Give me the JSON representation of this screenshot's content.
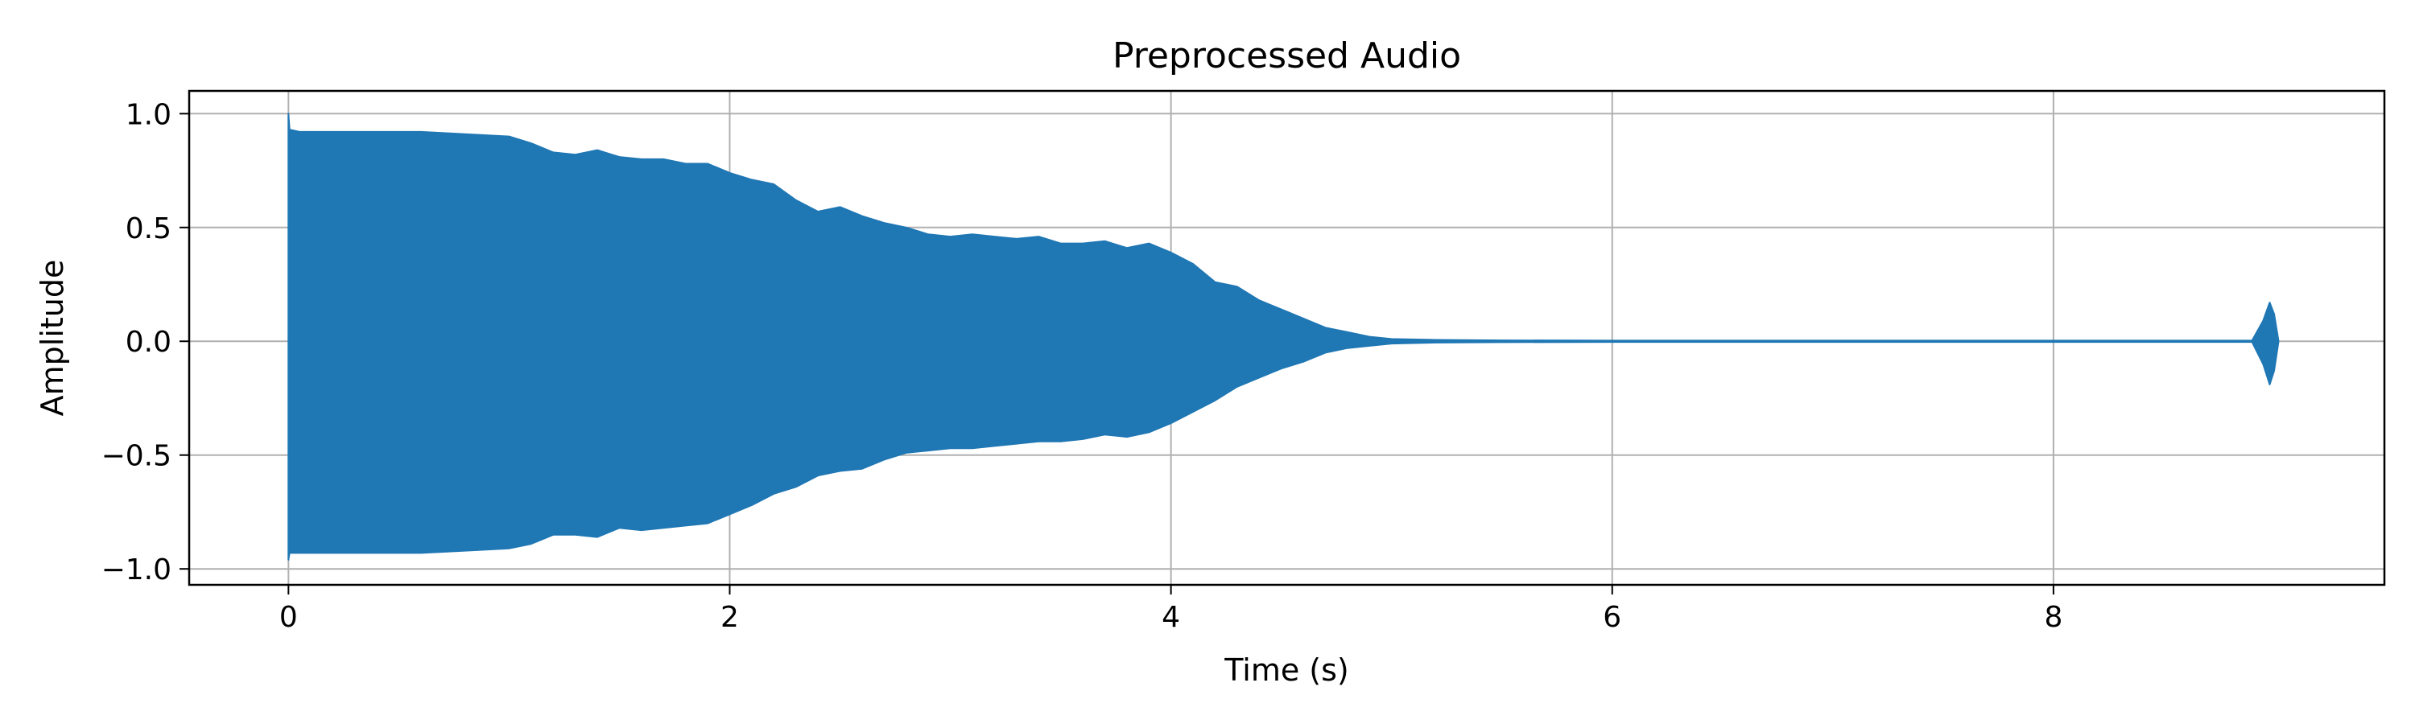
{
  "chart_data": {
    "type": "area",
    "title": "Preprocessed Audio",
    "xlabel": "Time (s)",
    "ylabel": "Amplitude",
    "xlim": [
      -0.45,
      9.5
    ],
    "ylim": [
      -1.07,
      1.1
    ],
    "grid": true,
    "series_color": "#1f77b4",
    "xticks": [
      {
        "value": 0,
        "label": "0"
      },
      {
        "value": 2,
        "label": "2"
      },
      {
        "value": 4,
        "label": "4"
      },
      {
        "value": 6,
        "label": "6"
      },
      {
        "value": 8,
        "label": "8"
      }
    ],
    "yticks": [
      {
        "value": 1.0,
        "label": "1.0"
      },
      {
        "value": 0.5,
        "label": "0.5"
      },
      {
        "value": 0.0,
        "label": "0.0"
      },
      {
        "value": -0.5,
        "label": "−0.5"
      },
      {
        "value": -1.0,
        "label": "−1.0"
      }
    ],
    "series": [
      {
        "x": [
          0,
          0.005,
          0.05,
          0.3,
          0.6,
          0.8,
          1.0,
          1.1,
          1.2,
          1.3,
          1.4,
          1.5,
          1.6,
          1.7,
          1.8,
          1.9,
          2.0,
          2.1,
          2.2,
          2.3,
          2.4,
          2.5,
          2.6,
          2.7,
          2.8,
          2.9,
          3.0,
          3.1,
          3.2,
          3.3,
          3.4,
          3.5,
          3.6,
          3.7,
          3.8,
          3.9,
          4.0,
          4.1,
          4.2,
          4.3,
          4.4,
          4.5,
          4.6,
          4.7,
          4.8,
          4.9,
          5.0,
          5.2,
          5.5,
          6.0,
          7.0,
          8.0,
          8.9,
          8.95,
          8.98,
          9.0,
          9.02
        ],
        "upper": [
          1.0,
          0.93,
          0.92,
          0.92,
          0.92,
          0.91,
          0.9,
          0.87,
          0.83,
          0.82,
          0.84,
          0.81,
          0.8,
          0.8,
          0.78,
          0.78,
          0.74,
          0.71,
          0.69,
          0.62,
          0.57,
          0.59,
          0.55,
          0.52,
          0.5,
          0.47,
          0.46,
          0.47,
          0.46,
          0.45,
          0.46,
          0.43,
          0.43,
          0.44,
          0.41,
          0.43,
          0.39,
          0.34,
          0.26,
          0.24,
          0.18,
          0.14,
          0.1,
          0.06,
          0.04,
          0.02,
          0.01,
          0.006,
          0.004,
          0.003,
          0.003,
          0.003,
          0.003,
          0.09,
          0.17,
          0.12,
          0.003
        ],
        "lower": [
          -0.96,
          -0.93,
          -0.93,
          -0.93,
          -0.93,
          -0.92,
          -0.91,
          -0.89,
          -0.85,
          -0.85,
          -0.86,
          -0.82,
          -0.83,
          -0.82,
          -0.81,
          -0.8,
          -0.76,
          -0.72,
          -0.67,
          -0.64,
          -0.59,
          -0.57,
          -0.56,
          -0.52,
          -0.49,
          -0.48,
          -0.47,
          -0.47,
          -0.46,
          -0.45,
          -0.44,
          -0.44,
          -0.43,
          -0.41,
          -0.42,
          -0.4,
          -0.36,
          -0.31,
          -0.26,
          -0.2,
          -0.16,
          -0.12,
          -0.09,
          -0.05,
          -0.03,
          -0.02,
          -0.01,
          -0.006,
          -0.004,
          -0.003,
          -0.003,
          -0.003,
          -0.003,
          -0.1,
          -0.19,
          -0.13,
          -0.003
        ]
      }
    ]
  }
}
